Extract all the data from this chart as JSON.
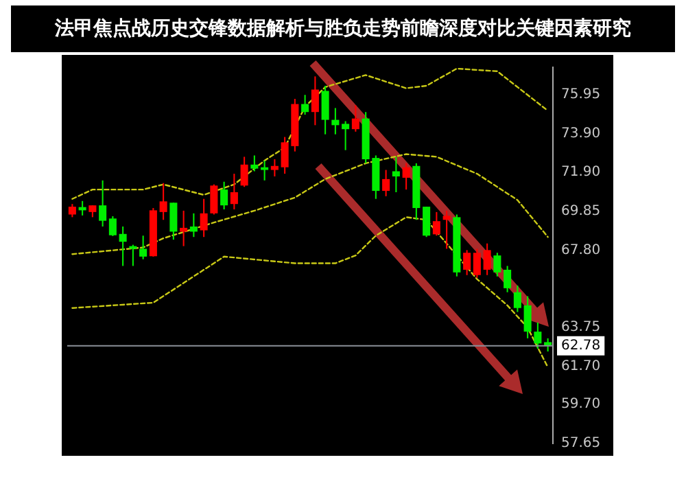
{
  "chart_data": {
    "type": "candlestick",
    "title": "法甲焦点战历史交锋数据解析与胜负走势前瞻深度对比关键因素研究",
    "categories": [
      null,
      null,
      null,
      null,
      null,
      null,
      null,
      null,
      null,
      null,
      null,
      null,
      null,
      null,
      null,
      null,
      null,
      null,
      null,
      null,
      null,
      null,
      null,
      null,
      null,
      null,
      null,
      null,
      null,
      null,
      null,
      null,
      null,
      null,
      null,
      null,
      null,
      null,
      null,
      null,
      null,
      null,
      null,
      null,
      null,
      null,
      null,
      null
    ],
    "ohlc": [
      [
        69.67,
        70.22,
        69.53,
        70.08
      ],
      [
        70.06,
        70.38,
        69.62,
        69.89
      ],
      [
        69.8,
        70.15,
        69.53,
        70.15
      ],
      [
        70.15,
        71.46,
        69.04,
        69.34
      ],
      [
        69.46,
        69.58,
        68.54,
        68.58
      ],
      [
        68.65,
        69.04,
        66.97,
        68.24
      ],
      [
        68.01,
        68.08,
        66.97,
        67.87
      ],
      [
        67.87,
        68.56,
        67.32,
        67.46
      ],
      [
        67.48,
        70.01,
        67.46,
        69.89
      ],
      [
        69.8,
        71.32,
        69.39,
        70.36
      ],
      [
        70.29,
        70.29,
        68.35,
        68.77
      ],
      [
        68.77,
        69.87,
        68.01,
        68.97
      ],
      [
        69.04,
        69.73,
        68.49,
        68.77
      ],
      [
        68.84,
        70.49,
        68.49,
        69.73
      ],
      [
        69.73,
        71.25,
        69.67,
        71.19
      ],
      [
        70.98,
        71.39,
        69.94,
        70.15
      ],
      [
        70.22,
        71.81,
        69.94,
        70.84
      ],
      [
        71.19,
        72.7,
        71.12,
        72.29
      ],
      [
        72.29,
        72.77,
        71.94,
        72.08
      ],
      [
        72.15,
        72.5,
        71.46,
        72.01
      ],
      [
        72.01,
        72.57,
        71.67,
        72.22
      ],
      [
        72.15,
        73.74,
        71.81,
        73.46
      ],
      [
        73.26,
        75.74,
        72.98,
        75.47
      ],
      [
        75.47,
        75.95,
        74.91,
        75.05
      ],
      [
        75.05,
        76.92,
        74.36,
        76.23
      ],
      [
        76.16,
        76.43,
        73.88,
        74.64
      ],
      [
        74.64,
        75.26,
        73.88,
        74.36
      ],
      [
        74.43,
        74.57,
        73.05,
        74.15
      ],
      [
        74.15,
        75.4,
        74.02,
        74.71
      ],
      [
        74.71,
        75.05,
        72.36,
        72.57
      ],
      [
        72.64,
        72.77,
        70.49,
        70.91
      ],
      [
        70.91,
        72.01,
        70.63,
        71.53
      ],
      [
        71.94,
        72.7,
        70.84,
        71.67
      ],
      [
        71.6,
        72.36,
        70.98,
        72.15
      ],
      [
        72.22,
        72.36,
        69.39,
        70.01
      ],
      [
        70.08,
        70.08,
        68.49,
        68.56
      ],
      [
        68.63,
        69.8,
        68.56,
        69.32
      ],
      [
        69.39,
        69.87,
        67.87,
        69.6
      ],
      [
        69.53,
        69.67,
        66.42,
        66.63
      ],
      [
        66.77,
        67.8,
        66.49,
        67.66
      ],
      [
        66.49,
        67.87,
        66.35,
        67.66
      ],
      [
        66.77,
        68.15,
        66.49,
        67.8
      ],
      [
        67.52,
        67.66,
        66.42,
        66.63
      ],
      [
        66.77,
        66.97,
        65.59,
        65.8
      ],
      [
        65.59,
        65.94,
        64.55,
        64.76
      ],
      [
        64.9,
        65.38,
        63.17,
        63.52
      ],
      [
        63.52,
        64.0,
        62.62,
        62.9
      ],
      [
        62.97,
        63.17,
        62.48,
        62.78
      ]
    ],
    "colors": [
      "#ff0000",
      "#00ee00",
      "#ff0000",
      "#00ee00",
      "#00ee00",
      "#00ee00",
      "#00ee00",
      "#00ee00",
      "#ff0000",
      "#ff0000",
      "#00ee00",
      "#ff0000",
      "#00ee00",
      "#ff0000",
      "#ff0000",
      "#00ee00",
      "#ff0000",
      "#ff0000",
      "#00ee00",
      "#00ee00",
      "#ff0000",
      "#ff0000",
      "#ff0000",
      "#00ee00",
      "#ff0000",
      "#00ee00",
      "#00ee00",
      "#00ee00",
      "#ff0000",
      "#00ee00",
      "#00ee00",
      "#ff0000",
      "#00ee00",
      "#ff0000",
      "#00ee00",
      "#00ee00",
      "#ff0000",
      "#ff0000",
      "#00ee00",
      "#ff0000",
      "#ff0000",
      "#ff0000",
      "#00ee00",
      "#00ee00",
      "#00ee00",
      "#00ee00",
      "#00ee00",
      "#00ee00"
    ],
    "series": [
      {
        "type": "line",
        "color": "#c9c916",
        "line_style": "dashed",
        "marker": "none",
        "values": [
          70.49,
          null,
          70.98,
          null,
          null,
          null,
          null,
          70.98,
          null,
          71.25,
          null,
          null,
          null,
          70.7,
          null,
          null,
          71.25,
          null,
          null,
          72.5,
          null,
          73.19,
          null,
          75.33,
          null,
          76.36,
          null,
          null,
          null,
          76.99,
          null,
          null,
          null,
          76.3,
          null,
          76.43,
          null,
          null,
          77.33,
          null,
          null,
          null,
          77.19,
          null,
          null,
          null,
          null,
          75.12
        ]
      },
      {
        "type": "line",
        "color": "#c9c916",
        "line_style": "dashed",
        "marker": "none",
        "values": [
          67.59,
          null,
          null,
          null,
          null,
          null,
          null,
          67.94,
          null,
          68.42,
          null,
          null,
          null,
          null,
          69.25,
          null,
          null,
          null,
          69.87,
          null,
          null,
          null,
          70.56,
          null,
          null,
          71.53,
          null,
          null,
          null,
          72.36,
          null,
          null,
          null,
          72.84,
          null,
          null,
          72.7,
          null,
          null,
          null,
          71.81,
          null,
          null,
          null,
          70.43,
          null,
          null,
          68.49
        ]
      },
      {
        "type": "line",
        "color": "#c9c916",
        "line_style": "dashed",
        "marker": "none",
        "values": [
          64.76,
          null,
          null,
          null,
          null,
          null,
          null,
          null,
          65.04,
          null,
          null,
          null,
          null,
          null,
          null,
          67.46,
          null,
          null,
          null,
          null,
          null,
          null,
          67.11,
          null,
          null,
          null,
          67.11,
          null,
          67.52,
          null,
          68.56,
          null,
          null,
          69.53,
          null,
          69.39,
          null,
          null,
          null,
          null,
          66.28,
          null,
          null,
          64.9,
          null,
          63.73,
          null,
          61.65
        ]
      }
    ],
    "ylim": [
      57.65,
      77.4
    ],
    "yticks": [
      57.65,
      {
        "value": 59.7,
        "label": "59.70"
      },
      {
        "value": 61.7,
        "label": "61.70"
      },
      63.75,
      {
        "value": 67.8,
        "label": "67.80"
      },
      69.85,
      {
        "value": 71.9,
        "label": "71.90"
      },
      {
        "value": 73.9,
        "label": "73.90"
      },
      75.95
    ],
    "ref_lines": [
      {
        "axis": "y",
        "value": 62.78,
        "label": "62.78",
        "color": "#8a8f99"
      }
    ],
    "grid": false,
    "legend": false
  }
}
